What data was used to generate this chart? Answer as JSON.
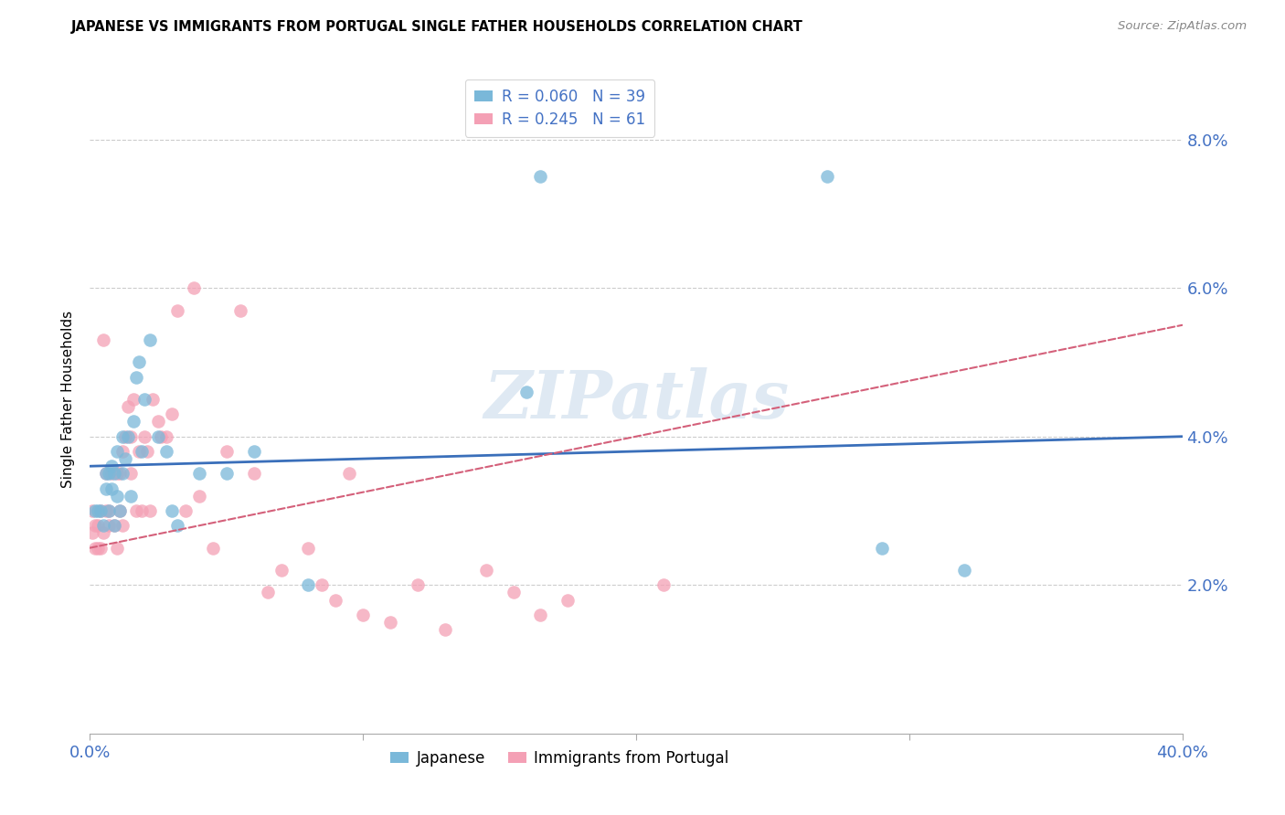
{
  "title": "JAPANESE VS IMMIGRANTS FROM PORTUGAL SINGLE FATHER HOUSEHOLDS CORRELATION CHART",
  "source": "Source: ZipAtlas.com",
  "ylabel": "Single Father Households",
  "xlim": [
    0.0,
    0.4
  ],
  "ylim": [
    0.0,
    0.09
  ],
  "ytick_vals": [
    0.02,
    0.04,
    0.06,
    0.08
  ],
  "ytick_labels": [
    "2.0%",
    "4.0%",
    "6.0%",
    "8.0%"
  ],
  "xticks": [
    0.0,
    0.1,
    0.2,
    0.3,
    0.4
  ],
  "xtick_labels": [
    "0.0%",
    "",
    "",
    "",
    "40.0%"
  ],
  "blue_color": "#7ab8d9",
  "pink_color": "#f4a0b5",
  "blue_line_color": "#3a6fba",
  "pink_line_color": "#d4607a",
  "watermark": "ZIPatlas",
  "background_color": "#ffffff",
  "japanese_x": [
    0.002,
    0.003,
    0.004,
    0.005,
    0.006,
    0.006,
    0.007,
    0.007,
    0.008,
    0.008,
    0.009,
    0.009,
    0.01,
    0.01,
    0.011,
    0.012,
    0.012,
    0.013,
    0.014,
    0.015,
    0.016,
    0.017,
    0.018,
    0.019,
    0.02,
    0.022,
    0.025,
    0.028,
    0.03,
    0.032,
    0.04,
    0.05,
    0.06,
    0.08,
    0.16,
    0.165,
    0.27,
    0.29,
    0.32
  ],
  "japanese_y": [
    0.03,
    0.03,
    0.03,
    0.028,
    0.035,
    0.033,
    0.03,
    0.035,
    0.033,
    0.036,
    0.035,
    0.028,
    0.038,
    0.032,
    0.03,
    0.04,
    0.035,
    0.037,
    0.04,
    0.032,
    0.042,
    0.048,
    0.05,
    0.038,
    0.045,
    0.053,
    0.04,
    0.038,
    0.03,
    0.028,
    0.035,
    0.035,
    0.038,
    0.02,
    0.046,
    0.075,
    0.075,
    0.025,
    0.022
  ],
  "portugal_x": [
    0.001,
    0.001,
    0.002,
    0.002,
    0.003,
    0.003,
    0.004,
    0.004,
    0.005,
    0.005,
    0.006,
    0.006,
    0.007,
    0.007,
    0.008,
    0.009,
    0.01,
    0.01,
    0.011,
    0.011,
    0.012,
    0.012,
    0.013,
    0.014,
    0.015,
    0.015,
    0.016,
    0.017,
    0.018,
    0.019,
    0.02,
    0.021,
    0.022,
    0.023,
    0.025,
    0.026,
    0.028,
    0.03,
    0.032,
    0.035,
    0.038,
    0.04,
    0.045,
    0.05,
    0.055,
    0.06,
    0.065,
    0.07,
    0.08,
    0.085,
    0.09,
    0.095,
    0.1,
    0.11,
    0.12,
    0.13,
    0.145,
    0.155,
    0.165,
    0.175,
    0.21
  ],
  "portugal_y": [
    0.027,
    0.03,
    0.025,
    0.028,
    0.025,
    0.028,
    0.025,
    0.03,
    0.027,
    0.053,
    0.03,
    0.035,
    0.028,
    0.03,
    0.035,
    0.028,
    0.025,
    0.035,
    0.035,
    0.03,
    0.038,
    0.028,
    0.04,
    0.044,
    0.04,
    0.035,
    0.045,
    0.03,
    0.038,
    0.03,
    0.04,
    0.038,
    0.03,
    0.045,
    0.042,
    0.04,
    0.04,
    0.043,
    0.057,
    0.03,
    0.06,
    0.032,
    0.025,
    0.038,
    0.057,
    0.035,
    0.019,
    0.022,
    0.025,
    0.02,
    0.018,
    0.035,
    0.016,
    0.015,
    0.02,
    0.014,
    0.022,
    0.019,
    0.016,
    0.018,
    0.02
  ],
  "blue_line_y_at_0": 0.036,
  "blue_line_y_at_40": 0.04,
  "pink_line_y_at_0": 0.025,
  "pink_line_y_at_40": 0.055
}
